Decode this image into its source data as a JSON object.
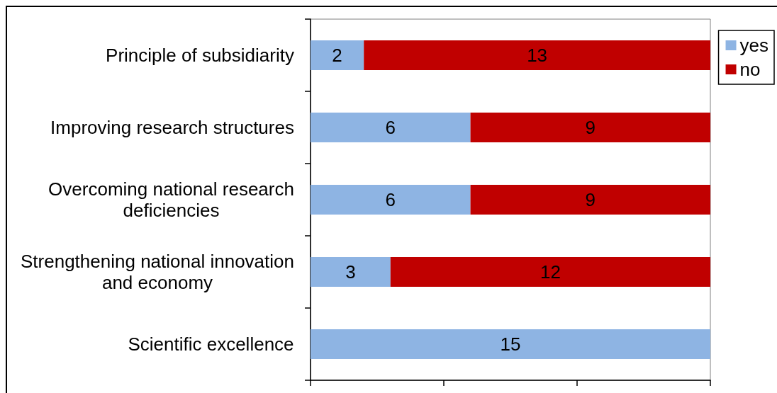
{
  "chart_data": {
    "type": "bar",
    "orientation": "horizontal",
    "stacked": true,
    "categories": [
      "Principle of subsidiarity",
      "Improving research structures",
      "Overcoming national research deficiencies",
      "Strengthening national innovation and economy",
      "Scientific excellence"
    ],
    "series": [
      {
        "name": "yes",
        "color": "#8eb4e3",
        "values": [
          2,
          6,
          6,
          3,
          15
        ]
      },
      {
        "name": "no",
        "color": "#c00000",
        "values": [
          13,
          9,
          9,
          12,
          null
        ]
      }
    ],
    "xlim": [
      0,
      15
    ],
    "xticks": [
      {
        "value": 0,
        "label": null
      },
      {
        "value": 5,
        "label": null
      },
      {
        "value": 10,
        "label": null
      },
      {
        "value": 15,
        "label": null
      }
    ],
    "tick_labels": "y",
    "data_labels": true,
    "legend": "top right",
    "grid": false
  }
}
